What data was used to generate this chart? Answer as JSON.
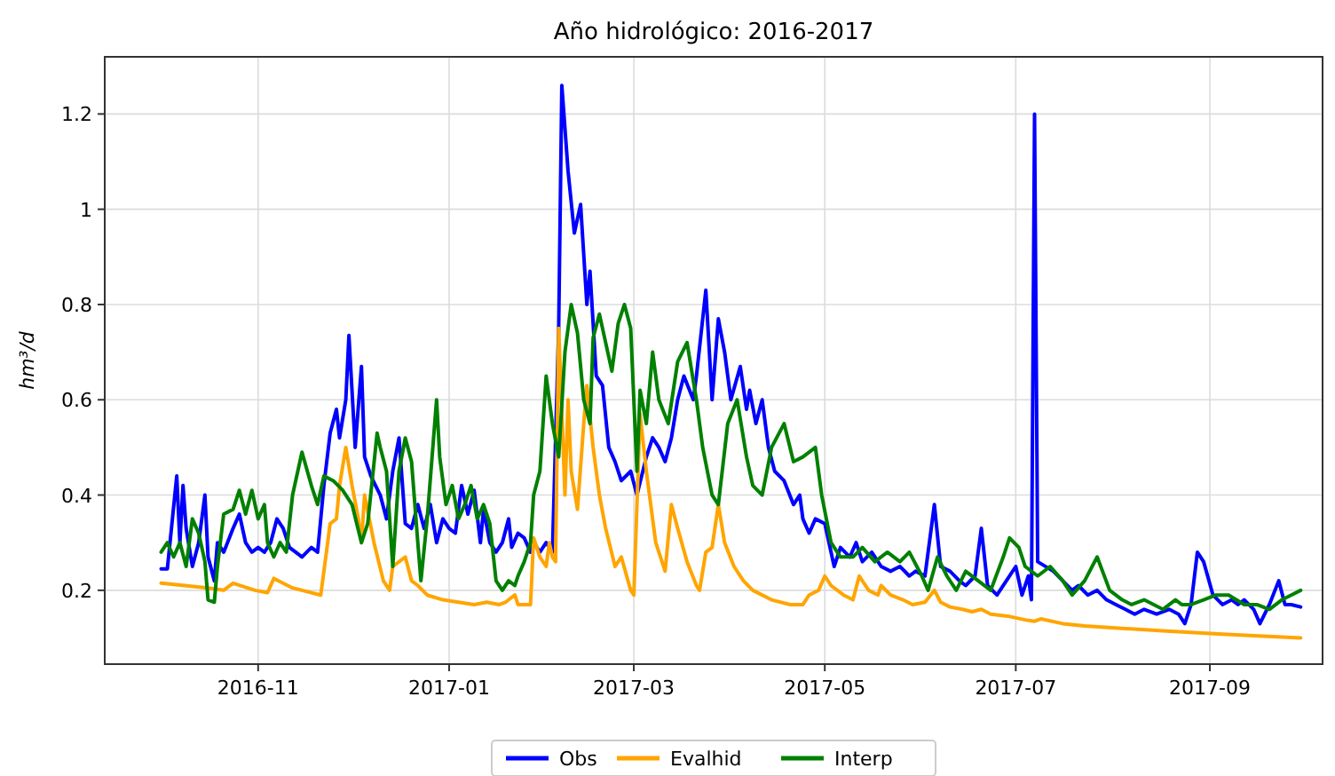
{
  "chart_data": {
    "type": "line",
    "title": "Año hidrológico: 2016-2017",
    "ylabel": "hm³/d",
    "xlim": [
      "2016-09-13",
      "2017-10-07"
    ],
    "xticks": [
      {
        "value": "2016-11-01",
        "label": "2016-11"
      },
      {
        "value": "2017-01-01",
        "label": "2017-01"
      },
      {
        "value": "2017-03-01",
        "label": "2017-03"
      },
      {
        "value": "2017-05-01",
        "label": "2017-05"
      },
      {
        "value": "2017-07-01",
        "label": "2017-07"
      },
      {
        "value": "2017-09-01",
        "label": "2017-09"
      }
    ],
    "ylim": [
      0.045,
      1.32
    ],
    "yticks": [
      0.2,
      0.4,
      0.6,
      0.8,
      1.0,
      1.2
    ],
    "grid": true,
    "legend": "bottom",
    "line_style": "solid",
    "marker": "none",
    "series": [
      {
        "name": "Obs",
        "color": "#0000ff",
        "x": [
          "2016-10-01",
          "2016-10-03",
          "2016-10-06",
          "2016-10-07",
          "2016-10-08",
          "2016-10-09",
          "2016-10-11",
          "2016-10-13",
          "2016-10-15",
          "2016-10-16",
          "2016-10-18",
          "2016-10-19",
          "2016-10-21",
          "2016-10-24",
          "2016-10-26",
          "2016-10-28",
          "2016-10-30",
          "2016-11-01",
          "2016-11-03",
          "2016-11-05",
          "2016-11-07",
          "2016-11-09",
          "2016-11-11",
          "2016-11-13",
          "2016-11-15",
          "2016-11-18",
          "2016-11-20",
          "2016-11-22",
          "2016-11-24",
          "2016-11-26",
          "2016-11-27",
          "2016-11-29",
          "2016-11-30",
          "2016-12-02",
          "2016-12-04",
          "2016-12-05",
          "2016-12-07",
          "2016-12-10",
          "2016-12-12",
          "2016-12-14",
          "2016-12-16",
          "2016-12-18",
          "2016-12-20",
          "2016-12-22",
          "2016-12-24",
          "2016-12-26",
          "2016-12-28",
          "2016-12-30",
          "2017-01-01",
          "2017-01-03",
          "2017-01-05",
          "2017-01-07",
          "2017-01-09",
          "2017-01-11",
          "2017-01-12",
          "2017-01-14",
          "2017-01-16",
          "2017-01-18",
          "2017-01-20",
          "2017-01-21",
          "2017-01-23",
          "2017-01-25",
          "2017-01-27",
          "2017-01-28",
          "2017-01-30",
          "2017-02-01",
          "2017-02-03",
          "2017-02-05",
          "2017-02-06",
          "2017-02-08",
          "2017-02-10",
          "2017-02-12",
          "2017-02-14",
          "2017-02-15",
          "2017-02-17",
          "2017-02-19",
          "2017-02-21",
          "2017-02-23",
          "2017-02-25",
          "2017-02-28",
          "2017-03-02",
          "2017-03-05",
          "2017-03-07",
          "2017-03-09",
          "2017-03-11",
          "2017-03-13",
          "2017-03-15",
          "2017-03-17",
          "2017-03-20",
          "2017-03-21",
          "2017-03-24",
          "2017-03-26",
          "2017-03-28",
          "2017-03-30",
          "2017-04-01",
          "2017-04-04",
          "2017-04-06",
          "2017-04-07",
          "2017-04-09",
          "2017-04-11",
          "2017-04-13",
          "2017-04-15",
          "2017-04-18",
          "2017-04-21",
          "2017-04-23",
          "2017-04-24",
          "2017-04-26",
          "2017-04-28",
          "2017-05-01",
          "2017-05-04",
          "2017-05-06",
          "2017-05-09",
          "2017-05-11",
          "2017-05-13",
          "2017-05-16",
          "2017-05-19",
          "2017-05-22",
          "2017-05-25",
          "2017-05-28",
          "2017-05-30",
          "2017-06-02",
          "2017-06-05",
          "2017-06-07",
          "2017-06-10",
          "2017-06-13",
          "2017-06-15",
          "2017-06-18",
          "2017-06-20",
          "2017-06-22",
          "2017-06-25",
          "2017-06-28",
          "2017-07-01",
          "2017-07-03",
          "2017-07-05",
          "2017-07-06",
          "2017-07-07",
          "2017-07-08",
          "2017-07-13",
          "2017-07-16",
          "2017-07-19",
          "2017-07-21",
          "2017-07-24",
          "2017-07-27",
          "2017-07-30",
          "2017-08-02",
          "2017-08-05",
          "2017-08-08",
          "2017-08-11",
          "2017-08-15",
          "2017-08-19",
          "2017-08-22",
          "2017-08-24",
          "2017-08-26",
          "2017-08-28",
          "2017-08-30",
          "2017-09-02",
          "2017-09-05",
          "2017-09-08",
          "2017-09-10",
          "2017-09-12",
          "2017-09-15",
          "2017-09-17",
          "2017-09-20",
          "2017-09-23",
          "2017-09-25",
          "2017-09-27",
          "2017-09-30"
        ],
        "values": [
          0.245,
          0.245,
          0.44,
          0.3,
          0.42,
          0.33,
          0.25,
          0.3,
          0.4,
          0.27,
          0.22,
          0.3,
          0.28,
          0.33,
          0.36,
          0.3,
          0.28,
          0.29,
          0.28,
          0.3,
          0.35,
          0.33,
          0.29,
          0.28,
          0.27,
          0.29,
          0.28,
          0.42,
          0.53,
          0.58,
          0.52,
          0.6,
          0.735,
          0.5,
          0.67,
          0.48,
          0.44,
          0.4,
          0.35,
          0.45,
          0.52,
          0.34,
          0.33,
          0.38,
          0.33,
          0.38,
          0.3,
          0.35,
          0.33,
          0.32,
          0.42,
          0.36,
          0.41,
          0.3,
          0.37,
          0.3,
          0.28,
          0.3,
          0.35,
          0.29,
          0.32,
          0.31,
          0.28,
          0.3,
          0.28,
          0.3,
          0.28,
          0.75,
          1.26,
          1.08,
          0.95,
          1.01,
          0.8,
          0.87,
          0.65,
          0.63,
          0.5,
          0.47,
          0.43,
          0.45,
          0.4,
          0.48,
          0.52,
          0.5,
          0.47,
          0.52,
          0.6,
          0.65,
          0.6,
          0.65,
          0.83,
          0.6,
          0.77,
          0.7,
          0.6,
          0.67,
          0.58,
          0.62,
          0.55,
          0.6,
          0.5,
          0.45,
          0.43,
          0.38,
          0.4,
          0.35,
          0.32,
          0.35,
          0.34,
          0.25,
          0.29,
          0.27,
          0.3,
          0.26,
          0.28,
          0.25,
          0.24,
          0.25,
          0.23,
          0.24,
          0.23,
          0.38,
          0.25,
          0.24,
          0.22,
          0.21,
          0.23,
          0.33,
          0.21,
          0.19,
          0.22,
          0.25,
          0.19,
          0.23,
          0.18,
          1.2,
          0.26,
          0.24,
          0.22,
          0.2,
          0.21,
          0.19,
          0.2,
          0.18,
          0.17,
          0.16,
          0.15,
          0.16,
          0.15,
          0.16,
          0.15,
          0.13,
          0.17,
          0.28,
          0.26,
          0.19,
          0.17,
          0.18,
          0.17,
          0.18,
          0.16,
          0.13,
          0.17,
          0.22,
          0.17,
          0.17,
          0.165
        ]
      },
      {
        "name": "Evalhid",
        "color": "#ffa500",
        "x": [
          "2016-10-01",
          "2016-10-16",
          "2016-10-21",
          "2016-10-24",
          "2016-10-31",
          "2016-11-04",
          "2016-11-06",
          "2016-11-12",
          "2016-11-21",
          "2016-11-24",
          "2016-11-26",
          "2016-11-27",
          "2016-11-29",
          "2016-12-01",
          "2016-12-03",
          "2016-12-04",
          "2016-12-05",
          "2016-12-08",
          "2016-12-11",
          "2016-12-13",
          "2016-12-14",
          "2016-12-16",
          "2016-12-18",
          "2016-12-20",
          "2016-12-22",
          "2016-12-25",
          "2016-12-30",
          "2017-01-04",
          "2017-01-09",
          "2017-01-13",
          "2017-01-17",
          "2017-01-19",
          "2017-01-22",
          "2017-01-23",
          "2017-01-27",
          "2017-01-28",
          "2017-01-30",
          "2017-02-01",
          "2017-02-02",
          "2017-02-03",
          "2017-02-04",
          "2017-02-05",
          "2017-02-07",
          "2017-02-08",
          "2017-02-09",
          "2017-02-11",
          "2017-02-13",
          "2017-02-14",
          "2017-02-16",
          "2017-02-18",
          "2017-02-20",
          "2017-02-23",
          "2017-02-25",
          "2017-02-28",
          "2017-03-01",
          "2017-03-03",
          "2017-03-05",
          "2017-03-08",
          "2017-03-11",
          "2017-03-13",
          "2017-03-15",
          "2017-03-18",
          "2017-03-21",
          "2017-03-22",
          "2017-03-24",
          "2017-03-26",
          "2017-03-28",
          "2017-03-30",
          "2017-04-02",
          "2017-04-05",
          "2017-04-08",
          "2017-04-14",
          "2017-04-20",
          "2017-04-24",
          "2017-04-26",
          "2017-04-29",
          "2017-05-01",
          "2017-05-03",
          "2017-05-07",
          "2017-05-10",
          "2017-05-12",
          "2017-05-15",
          "2017-05-18",
          "2017-05-19",
          "2017-05-22",
          "2017-05-26",
          "2017-05-29",
          "2017-06-02",
          "2017-06-05",
          "2017-06-07",
          "2017-06-10",
          "2017-06-14",
          "2017-06-17",
          "2017-06-20",
          "2017-06-23",
          "2017-06-29",
          "2017-07-04",
          "2017-07-07",
          "2017-07-09",
          "2017-07-16",
          "2017-07-23",
          "2017-08-04",
          "2017-08-17",
          "2017-09-05",
          "2017-09-30"
        ],
        "values": [
          0.215,
          0.205,
          0.2,
          0.215,
          0.2,
          0.195,
          0.225,
          0.205,
          0.19,
          0.34,
          0.35,
          0.42,
          0.5,
          0.42,
          0.35,
          0.3,
          0.4,
          0.3,
          0.22,
          0.2,
          0.25,
          0.26,
          0.27,
          0.22,
          0.21,
          0.19,
          0.18,
          0.175,
          0.17,
          0.175,
          0.17,
          0.175,
          0.19,
          0.17,
          0.17,
          0.31,
          0.27,
          0.25,
          0.3,
          0.27,
          0.26,
          0.75,
          0.4,
          0.6,
          0.45,
          0.37,
          0.55,
          0.63,
          0.5,
          0.4,
          0.33,
          0.25,
          0.27,
          0.2,
          0.19,
          0.57,
          0.45,
          0.3,
          0.24,
          0.38,
          0.33,
          0.26,
          0.21,
          0.2,
          0.28,
          0.29,
          0.38,
          0.3,
          0.25,
          0.22,
          0.2,
          0.18,
          0.17,
          0.17,
          0.19,
          0.2,
          0.23,
          0.21,
          0.19,
          0.18,
          0.23,
          0.2,
          0.19,
          0.21,
          0.19,
          0.18,
          0.17,
          0.175,
          0.2,
          0.175,
          0.165,
          0.16,
          0.155,
          0.16,
          0.15,
          0.145,
          0.138,
          0.135,
          0.14,
          0.13,
          0.125,
          0.12,
          0.115,
          0.108,
          0.1
        ]
      },
      {
        "name": "Interp",
        "color": "#008000",
        "x": [
          "2016-10-01",
          "2016-10-03",
          "2016-10-05",
          "2016-10-07",
          "2016-10-09",
          "2016-10-11",
          "2016-10-13",
          "2016-10-15",
          "2016-10-16",
          "2016-10-18",
          "2016-10-19",
          "2016-10-21",
          "2016-10-24",
          "2016-10-26",
          "2016-10-28",
          "2016-10-30",
          "2016-11-01",
          "2016-11-03",
          "2016-11-04",
          "2016-11-06",
          "2016-11-08",
          "2016-11-10",
          "2016-11-12",
          "2016-11-15",
          "2016-11-18",
          "2016-11-20",
          "2016-11-22",
          "2016-11-25",
          "2016-11-28",
          "2016-12-01",
          "2016-12-04",
          "2016-12-06",
          "2016-12-09",
          "2016-12-10",
          "2016-12-12",
          "2016-12-14",
          "2016-12-16",
          "2016-12-18",
          "2016-12-20",
          "2016-12-22",
          "2016-12-23",
          "2016-12-25",
          "2016-12-28",
          "2016-12-29",
          "2016-12-31",
          "2017-01-02",
          "2017-01-04",
          "2017-01-06",
          "2017-01-08",
          "2017-01-10",
          "2017-01-12",
          "2017-01-14",
          "2017-01-16",
          "2017-01-18",
          "2017-01-20",
          "2017-01-22",
          "2017-01-23",
          "2017-01-25",
          "2017-01-27",
          "2017-01-28",
          "2017-01-30",
          "2017-02-01",
          "2017-02-03",
          "2017-02-05",
          "2017-02-07",
          "2017-02-09",
          "2017-02-11",
          "2017-02-13",
          "2017-02-15",
          "2017-02-16",
          "2017-02-18",
          "2017-02-20",
          "2017-02-22",
          "2017-02-24",
          "2017-02-26",
          "2017-02-28",
          "2017-03-02",
          "2017-03-03",
          "2017-03-05",
          "2017-03-07",
          "2017-03-09",
          "2017-03-12",
          "2017-03-15",
          "2017-03-18",
          "2017-03-21",
          "2017-03-23",
          "2017-03-26",
          "2017-03-28",
          "2017-03-31",
          "2017-04-03",
          "2017-04-06",
          "2017-04-08",
          "2017-04-11",
          "2017-04-14",
          "2017-04-18",
          "2017-04-21",
          "2017-04-24",
          "2017-04-28",
          "2017-04-30",
          "2017-05-03",
          "2017-05-06",
          "2017-05-10",
          "2017-05-13",
          "2017-05-17",
          "2017-05-21",
          "2017-05-25",
          "2017-05-28",
          "2017-06-01",
          "2017-06-03",
          "2017-06-06",
          "2017-06-09",
          "2017-06-12",
          "2017-06-15",
          "2017-06-19",
          "2017-06-23",
          "2017-06-27",
          "2017-06-29",
          "2017-07-02",
          "2017-07-04",
          "2017-07-08",
          "2017-07-12",
          "2017-07-16",
          "2017-07-19",
          "2017-07-23",
          "2017-07-27",
          "2017-07-31",
          "2017-08-04",
          "2017-08-07",
          "2017-08-11",
          "2017-08-17",
          "2017-08-21",
          "2017-08-23",
          "2017-08-26",
          "2017-08-30",
          "2017-09-03",
          "2017-09-07",
          "2017-09-12",
          "2017-09-16",
          "2017-09-20",
          "2017-09-24",
          "2017-09-27",
          "2017-09-30"
        ],
        "values": [
          0.28,
          0.3,
          0.27,
          0.3,
          0.25,
          0.35,
          0.32,
          0.26,
          0.18,
          0.175,
          0.25,
          0.36,
          0.37,
          0.41,
          0.36,
          0.41,
          0.35,
          0.38,
          0.3,
          0.27,
          0.3,
          0.28,
          0.4,
          0.49,
          0.42,
          0.38,
          0.44,
          0.43,
          0.41,
          0.38,
          0.3,
          0.34,
          0.53,
          0.5,
          0.45,
          0.25,
          0.45,
          0.52,
          0.47,
          0.3,
          0.22,
          0.35,
          0.6,
          0.48,
          0.38,
          0.42,
          0.35,
          0.38,
          0.42,
          0.35,
          0.38,
          0.34,
          0.22,
          0.2,
          0.22,
          0.21,
          0.23,
          0.26,
          0.3,
          0.4,
          0.45,
          0.65,
          0.55,
          0.48,
          0.7,
          0.8,
          0.74,
          0.6,
          0.55,
          0.73,
          0.78,
          0.72,
          0.66,
          0.76,
          0.8,
          0.75,
          0.45,
          0.62,
          0.55,
          0.7,
          0.6,
          0.55,
          0.68,
          0.72,
          0.6,
          0.5,
          0.4,
          0.38,
          0.55,
          0.6,
          0.48,
          0.42,
          0.4,
          0.5,
          0.55,
          0.47,
          0.48,
          0.5,
          0.4,
          0.3,
          0.27,
          0.27,
          0.29,
          0.26,
          0.28,
          0.26,
          0.28,
          0.23,
          0.2,
          0.27,
          0.23,
          0.2,
          0.24,
          0.22,
          0.2,
          0.27,
          0.31,
          0.29,
          0.25,
          0.23,
          0.25,
          0.22,
          0.19,
          0.22,
          0.27,
          0.2,
          0.18,
          0.17,
          0.18,
          0.16,
          0.18,
          0.17,
          0.17,
          0.18,
          0.19,
          0.19,
          0.17,
          0.17,
          0.16,
          0.18,
          0.19,
          0.2
        ]
      }
    ]
  }
}
